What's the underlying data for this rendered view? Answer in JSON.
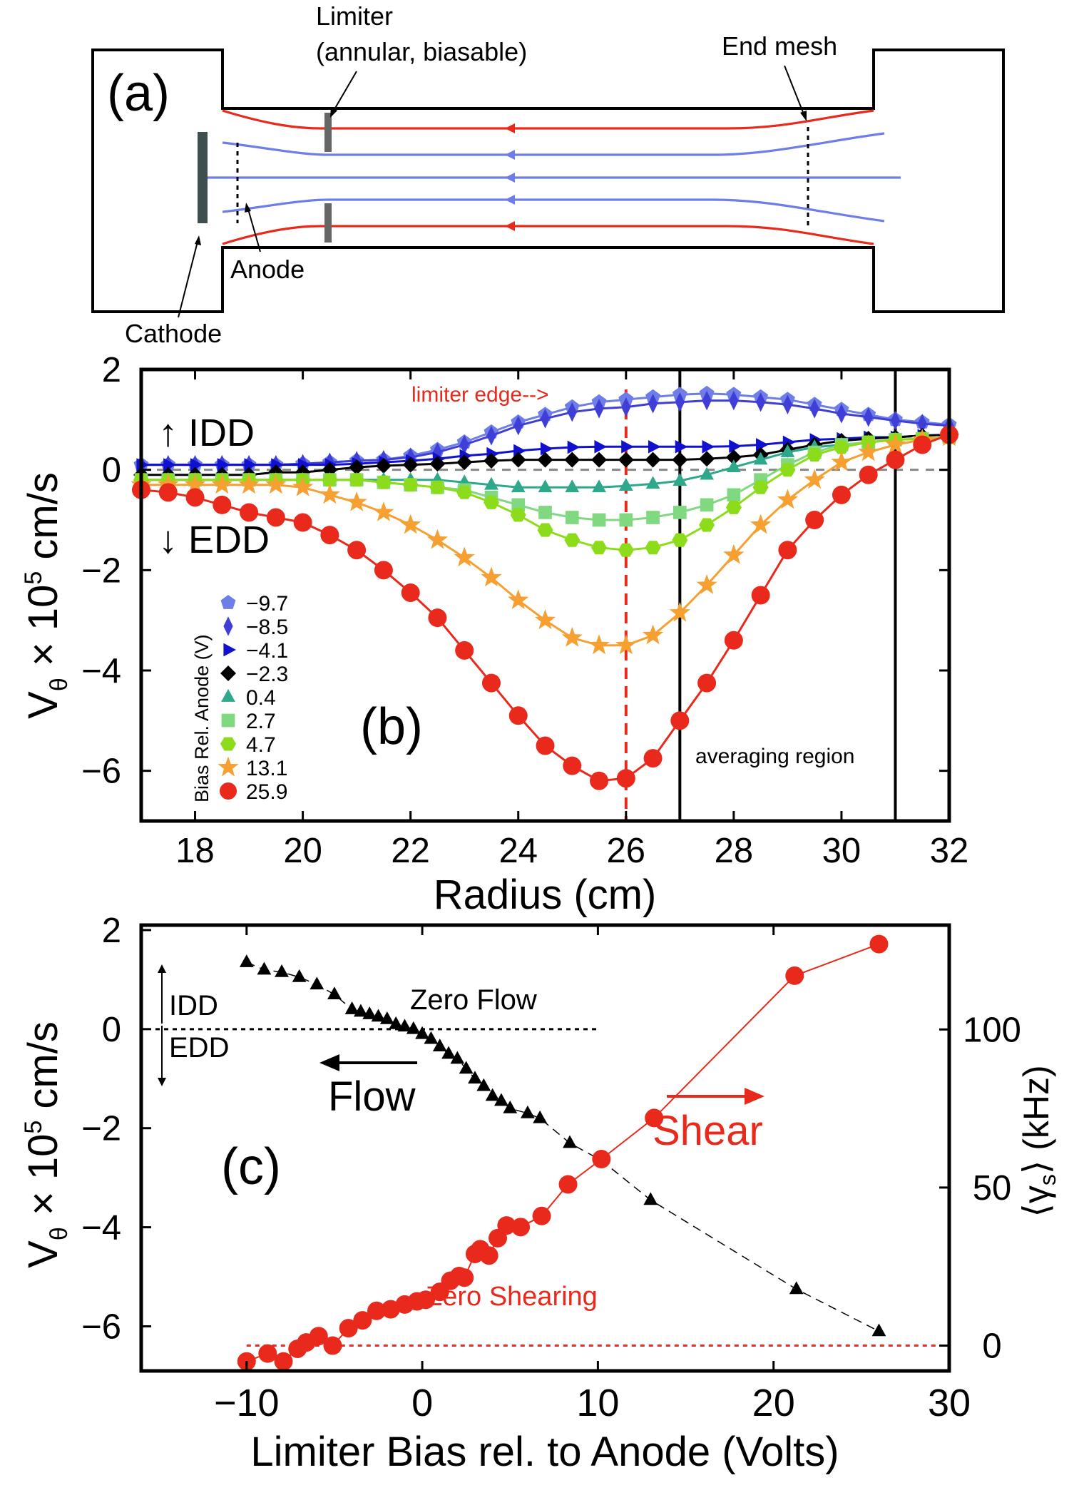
{
  "panel_a": {
    "label": "(a)",
    "limiter": [
      "Limiter",
      "(annular, biasable)"
    ],
    "end_mesh": "End mesh",
    "anode": "Anode",
    "cathode": "Cathode"
  },
  "colors": {
    "red": "#e8291c",
    "blue": "#6f7de8",
    "grey": "#888888"
  },
  "chart_data": [
    {
      "type": "line",
      "panel": "(b)",
      "xlabel": "Radius (cm)",
      "ylabel": "Vθ × 10⁵ cm/s",
      "ylabel_parts": [
        "V",
        "θ",
        " × 10",
        "5",
        " cm/s"
      ],
      "xlim": [
        17,
        32
      ],
      "ylim": [
        -7,
        2
      ],
      "xticks": [
        18,
        20,
        22,
        24,
        26,
        28,
        30,
        32
      ],
      "yticks": [
        2,
        0,
        -2,
        -4,
        -6
      ],
      "tick_labels": {
        "18": "18",
        "20": "20",
        "22": "22",
        "24": "24",
        "26": "26",
        "28": "28",
        "30": "30",
        "32": "32",
        "2": "2",
        "0": "0",
        "-2": "−2",
        "-4": "−4",
        "-6": "−6"
      },
      "annotations": {
        "idd": "↑ IDD",
        "edd": "↓ EDD",
        "limiter_edge": "limiter edge-->",
        "averaging_region": "averaging region",
        "legend_title": "Bias Rel. Anode (V)"
      },
      "limiter_edge_x": 26,
      "averaging_region_x": [
        27,
        31
      ],
      "zero_line_y": 0,
      "x": [
        17,
        17.5,
        18,
        18.5,
        19,
        19.5,
        20,
        20.5,
        21,
        21.5,
        22,
        22.5,
        23,
        23.5,
        24,
        24.5,
        25,
        25.5,
        26,
        26.5,
        27,
        27.5,
        28,
        28.5,
        29,
        29.5,
        30,
        30.5,
        31,
        31.5,
        32
      ],
      "series": [
        {
          "name": "−9.7",
          "marker": "pentagon",
          "color": "#6f7de8",
          "values": [
            0.1,
            0.1,
            0.1,
            0.1,
            0.1,
            0.1,
            0.12,
            0.15,
            0.18,
            0.2,
            0.28,
            0.4,
            0.55,
            0.75,
            0.95,
            1.1,
            1.25,
            1.35,
            1.4,
            1.45,
            1.5,
            1.52,
            1.5,
            1.45,
            1.4,
            1.3,
            1.2,
            1.1,
            1.0,
            0.95,
            0.9
          ]
        },
        {
          "name": "−8.5",
          "marker": "diamond",
          "color": "#3f3fd8",
          "values": [
            0.1,
            0.1,
            0.1,
            0.1,
            0.1,
            0.1,
            0.12,
            0.15,
            0.18,
            0.2,
            0.25,
            0.35,
            0.5,
            0.68,
            0.88,
            1.02,
            1.15,
            1.22,
            1.25,
            1.32,
            1.35,
            1.38,
            1.38,
            1.35,
            1.3,
            1.22,
            1.12,
            1.05,
            0.98,
            0.92,
            0.88
          ]
        },
        {
          "name": "−4.1",
          "marker": "triangle-right",
          "color": "#1010d0",
          "values": [
            0.1,
            0.1,
            0.1,
            0.1,
            0.1,
            0.1,
            0.1,
            0.1,
            0.12,
            0.15,
            0.18,
            0.22,
            0.28,
            0.32,
            0.38,
            0.42,
            0.45,
            0.46,
            0.46,
            0.46,
            0.46,
            0.46,
            0.47,
            0.5,
            0.55,
            0.6,
            0.62,
            0.65,
            0.65,
            0.68,
            0.7
          ]
        },
        {
          "name": "−2.3",
          "marker": "diamond-small",
          "color": "#000000",
          "values": [
            -0.1,
            -0.1,
            -0.1,
            -0.1,
            -0.1,
            -0.05,
            -0.05,
            0.0,
            0.05,
            0.08,
            0.1,
            0.12,
            0.15,
            0.18,
            0.2,
            0.2,
            0.2,
            0.2,
            0.2,
            0.2,
            0.2,
            0.22,
            0.25,
            0.3,
            0.4,
            0.5,
            0.58,
            0.62,
            0.65,
            0.68,
            0.7
          ]
        },
        {
          "name": "0.4",
          "marker": "triangle",
          "color": "#2ea88a",
          "values": [
            -0.2,
            -0.2,
            -0.2,
            -0.2,
            -0.2,
            -0.2,
            -0.2,
            -0.2,
            -0.2,
            -0.2,
            -0.2,
            -0.2,
            -0.25,
            -0.3,
            -0.35,
            -0.35,
            -0.35,
            -0.35,
            -0.32,
            -0.28,
            -0.22,
            -0.1,
            0.05,
            0.2,
            0.35,
            0.45,
            0.5,
            0.55,
            0.6,
            0.62,
            0.65
          ]
        },
        {
          "name": "2.7",
          "marker": "square",
          "color": "#80d880",
          "values": [
            -0.2,
            -0.2,
            -0.2,
            -0.2,
            -0.2,
            -0.2,
            -0.2,
            -0.2,
            -0.2,
            -0.25,
            -0.3,
            -0.35,
            -0.4,
            -0.55,
            -0.7,
            -0.85,
            -0.95,
            -1.0,
            -1.0,
            -0.95,
            -0.85,
            -0.7,
            -0.5,
            -0.2,
            0.1,
            0.35,
            0.5,
            0.55,
            0.6,
            0.62,
            0.65
          ]
        },
        {
          "name": "4.7",
          "marker": "hexagon",
          "color": "#8cdc1c",
          "values": [
            -0.2,
            -0.2,
            -0.2,
            -0.2,
            -0.2,
            -0.2,
            -0.2,
            -0.2,
            -0.2,
            -0.25,
            -0.3,
            -0.35,
            -0.45,
            -0.65,
            -0.9,
            -1.2,
            -1.4,
            -1.55,
            -1.6,
            -1.55,
            -1.4,
            -1.1,
            -0.75,
            -0.35,
            0.0,
            0.3,
            0.45,
            0.55,
            0.6,
            0.62,
            0.65
          ]
        },
        {
          "name": "13.1",
          "marker": "star",
          "color": "#f5a030",
          "values": [
            -0.3,
            -0.3,
            -0.3,
            -0.3,
            -0.3,
            -0.3,
            -0.35,
            -0.5,
            -0.65,
            -0.85,
            -1.1,
            -1.4,
            -1.75,
            -2.15,
            -2.6,
            -3.0,
            -3.35,
            -3.5,
            -3.5,
            -3.3,
            -2.85,
            -2.3,
            -1.7,
            -1.1,
            -0.6,
            -0.2,
            0.15,
            0.35,
            0.5,
            0.6,
            0.65
          ]
        },
        {
          "name": "25.9",
          "marker": "circle",
          "color": "#e8291c",
          "values": [
            -0.4,
            -0.45,
            -0.55,
            -0.7,
            -0.85,
            -0.95,
            -1.05,
            -1.3,
            -1.6,
            -2.0,
            -2.45,
            -2.95,
            -3.6,
            -4.25,
            -4.9,
            -5.5,
            -5.9,
            -6.2,
            -6.15,
            -5.75,
            -5.0,
            -4.25,
            -3.4,
            -2.5,
            -1.6,
            -1.0,
            -0.5,
            -0.1,
            0.2,
            0.5,
            0.7
          ]
        }
      ]
    },
    {
      "type": "scatter",
      "panel": "(c)",
      "xlabel": "Limiter Bias rel. to Anode (Volts)",
      "ylabel": "Vθ × 10⁵ cm/s",
      "ylabel_parts": [
        "V",
        "θ",
        " × 10",
        "5",
        " cm/s"
      ],
      "y2label": "⟨γs⟩ (kHz)",
      "y2label_parts": [
        "⟨γ",
        "s",
        "⟩ (kHz)"
      ],
      "xlim": [
        -16,
        30
      ],
      "ylim": [
        -6.9,
        2.1
      ],
      "y2lim": [
        -8,
        133
      ],
      "xticks": [
        -10,
        0,
        10,
        20,
        30
      ],
      "yticks": [
        2,
        0,
        -2,
        -4,
        -6
      ],
      "y2ticks": [
        100,
        50,
        0
      ],
      "tick_labels": {
        "x-10": "−10",
        "x0": "0",
        "x10": "10",
        "x20": "20",
        "x30": "30",
        "y2": "2",
        "y0": "0",
        "y-2": "−2",
        "y-4": "−4",
        "y-6": "−6",
        "r100": "100",
        "r50": "50",
        "r0": "0"
      },
      "annotations": {
        "idd": "IDD",
        "edd": "EDD",
        "zero_flow": "Zero Flow",
        "zero_shearing": "Zero Shearing",
        "flow": "Flow",
        "shear": "Shear"
      },
      "series": [
        {
          "name": "Flow",
          "axis": "left",
          "marker": "triangle",
          "color": "#000000",
          "x": [
            -10,
            -9,
            -8,
            -7,
            -6,
            -5,
            -4,
            -3.5,
            -3,
            -2.5,
            -2,
            -1.5,
            -1,
            -0.5,
            0,
            0.5,
            1,
            1.5,
            2,
            2.5,
            3,
            3.5,
            4,
            4.5,
            5,
            6,
            6.7,
            8.4,
            10.2,
            13,
            21.3,
            26
          ],
          "values": [
            1.35,
            1.2,
            1.15,
            1.05,
            0.9,
            0.7,
            0.4,
            0.35,
            0.3,
            0.25,
            0.2,
            0.1,
            0.05,
            0.0,
            -0.1,
            -0.2,
            -0.35,
            -0.5,
            -0.6,
            -0.8,
            -1.0,
            -1.15,
            -1.35,
            -1.45,
            -1.6,
            -1.7,
            -1.8,
            -2.3,
            -2.65,
            -3.45,
            -5.25,
            -6.1
          ]
        },
        {
          "name": "Shear",
          "axis": "right",
          "marker": "circle",
          "color": "#e8291c",
          "x": [
            -10,
            -8.8,
            -7.9,
            -7.1,
            -6.6,
            -5.9,
            -5.1,
            -4.2,
            -3.4,
            -2.6,
            -1.8,
            -1.0,
            -0.3,
            0.2,
            1.0,
            1.6,
            2.1,
            2.4,
            3.0,
            3.3,
            3.8,
            4.3,
            4.8,
            5.6,
            6.8,
            8.3,
            10.2,
            13.2,
            21.2,
            26.0
          ],
          "values": [
            -5.0,
            -2.5,
            -5.0,
            -1.0,
            1.0,
            3.0,
            0.0,
            5.5,
            8.0,
            11.0,
            11.5,
            13.0,
            14.0,
            14.5,
            17.0,
            20.5,
            22.0,
            21.5,
            29.0,
            30.5,
            28.5,
            34.0,
            38.0,
            37.5,
            41.0,
            51.0,
            59.0,
            72.0,
            117.0,
            127.0
          ]
        }
      ]
    }
  ]
}
